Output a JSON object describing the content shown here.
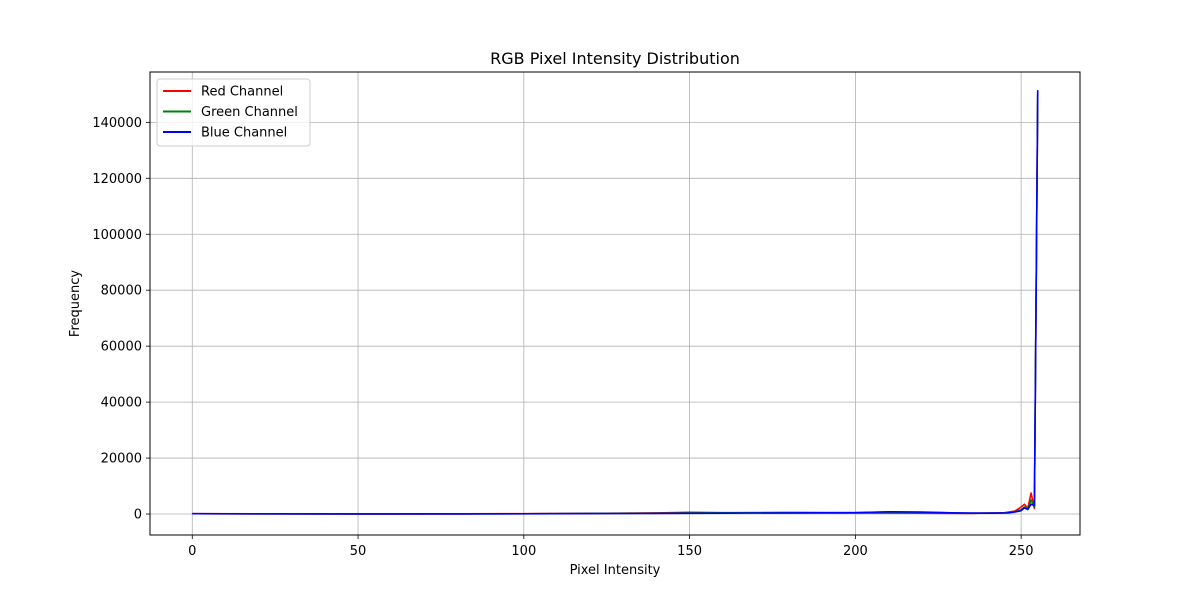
{
  "chart_data": {
    "type": "line",
    "title": "RGB Pixel Intensity Distribution",
    "xlabel": "Pixel Intensity",
    "ylabel": "Frequency",
    "xlim": [
      -12.75,
      267.75
    ],
    "ylim": [
      -7500,
      158000
    ],
    "xticks": [
      0,
      50,
      100,
      150,
      200,
      250
    ],
    "yticks": [
      0,
      20000,
      40000,
      60000,
      80000,
      100000,
      120000,
      140000
    ],
    "grid": true,
    "legend_position": "upper-left",
    "series": [
      {
        "name": "Red Channel",
        "color": "#ff0000",
        "points": [
          [
            0,
            120
          ],
          [
            20,
            60
          ],
          [
            50,
            40
          ],
          [
            80,
            60
          ],
          [
            100,
            120
          ],
          [
            120,
            200
          ],
          [
            140,
            400
          ],
          [
            150,
            600
          ],
          [
            160,
            500
          ],
          [
            180,
            400
          ],
          [
            200,
            350
          ],
          [
            220,
            300
          ],
          [
            235,
            200
          ],
          [
            245,
            500
          ],
          [
            248,
            1000
          ],
          [
            250,
            2500
          ],
          [
            251,
            3500
          ],
          [
            252,
            2000
          ],
          [
            253,
            7500
          ],
          [
            254,
            2000
          ],
          [
            255,
            150000
          ]
        ]
      },
      {
        "name": "Green Channel",
        "color": "#008000",
        "points": [
          [
            0,
            100
          ],
          [
            20,
            50
          ],
          [
            50,
            30
          ],
          [
            80,
            50
          ],
          [
            100,
            100
          ],
          [
            120,
            180
          ],
          [
            140,
            300
          ],
          [
            150,
            400
          ],
          [
            160,
            450
          ],
          [
            180,
            550
          ],
          [
            200,
            500
          ],
          [
            210,
            700
          ],
          [
            220,
            600
          ],
          [
            235,
            300
          ],
          [
            245,
            400
          ],
          [
            248,
            800
          ],
          [
            250,
            1500
          ],
          [
            251,
            2500
          ],
          [
            252,
            1800
          ],
          [
            253,
            5000
          ],
          [
            254,
            2500
          ],
          [
            255,
            151000
          ]
        ]
      },
      {
        "name": "Blue Channel",
        "color": "#0000ff",
        "points": [
          [
            0,
            110
          ],
          [
            20,
            50
          ],
          [
            50,
            30
          ],
          [
            80,
            40
          ],
          [
            100,
            90
          ],
          [
            120,
            150
          ],
          [
            140,
            200
          ],
          [
            150,
            250
          ],
          [
            160,
            300
          ],
          [
            180,
            400
          ],
          [
            200,
            500
          ],
          [
            210,
            800
          ],
          [
            220,
            700
          ],
          [
            230,
            400
          ],
          [
            240,
            300
          ],
          [
            246,
            400
          ],
          [
            248,
            700
          ],
          [
            250,
            1200
          ],
          [
            251,
            2200
          ],
          [
            252,
            1600
          ],
          [
            253,
            3500
          ],
          [
            254,
            3000
          ],
          [
            255,
            151500
          ]
        ]
      }
    ]
  }
}
